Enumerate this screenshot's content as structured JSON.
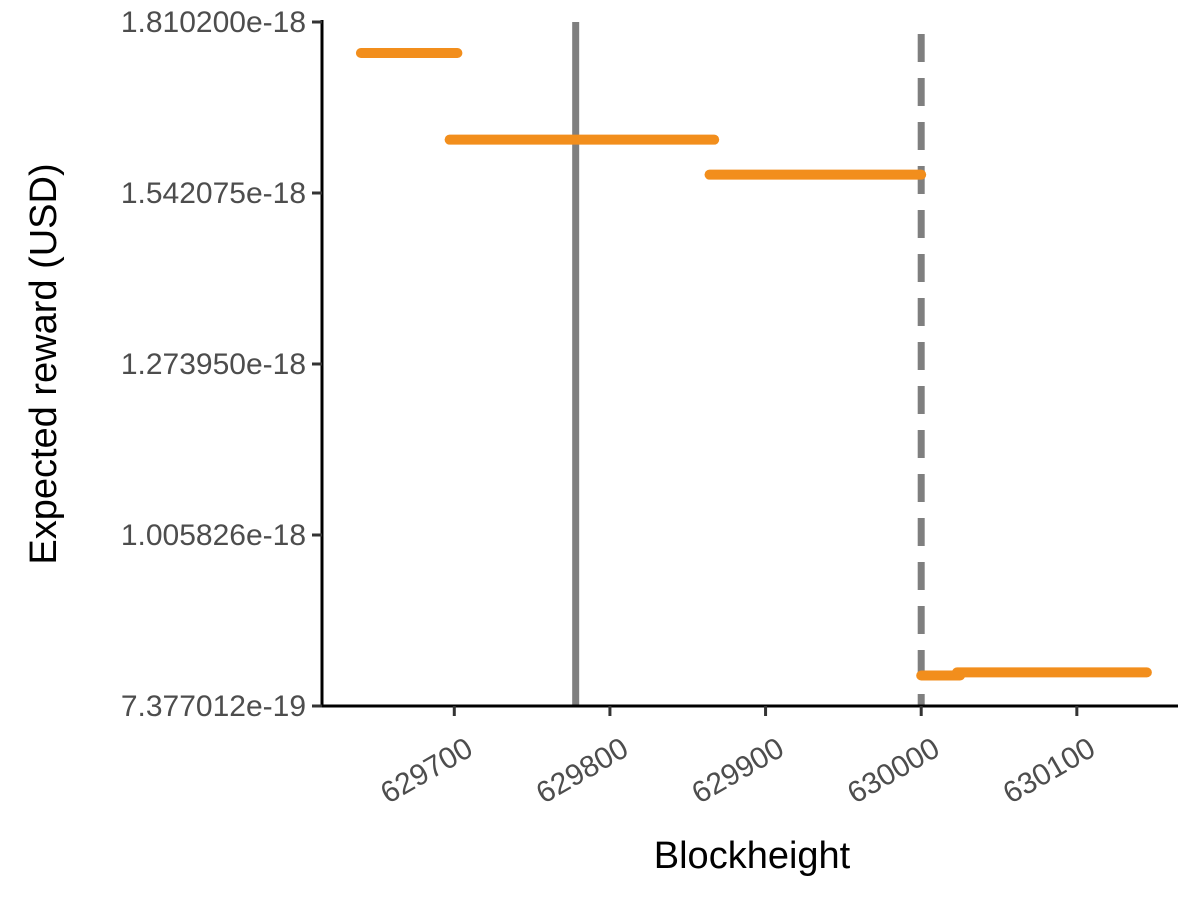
{
  "chart_data": {
    "type": "line",
    "title": "",
    "xlabel": "Blockheight",
    "ylabel": "Expected reward (USD)",
    "xlim": [
      629615,
      630165
    ],
    "ylim": [
      7.377012e-19,
      1.8102e-18
    ],
    "x_ticks": [
      629700,
      629800,
      629900,
      630000,
      630100
    ],
    "x_tick_labels": [
      "629700",
      "629800",
      "629900",
      "630000",
      "630100"
    ],
    "y_ticks": [
      7.377012e-19,
      1.005826e-18,
      1.27395e-18,
      1.542075e-18,
      1.8102e-18
    ],
    "y_tick_labels": [
      "7.377012e-19",
      "1.005826e-18",
      "1.273950e-18",
      "1.542075e-18",
      "1.810200e-18"
    ],
    "grid": false,
    "legend": "none",
    "series_color": "#f28e1c",
    "segments": [
      {
        "x_start": 629640,
        "x_end": 629702,
        "y": 1.7616e-18
      },
      {
        "x_start": 629697,
        "x_end": 629867,
        "y": 1.6257e-18
      },
      {
        "x_start": 629864,
        "x_end": 630000,
        "y": 1.5708e-18
      },
      {
        "x_start": 630000,
        "x_end": 630025,
        "y": 7.855e-19
      },
      {
        "x_start": 630023,
        "x_end": 630145,
        "y": 7.904e-19
      }
    ],
    "reference_lines": [
      {
        "x": 629778,
        "style": "solid",
        "color": "#7f7f7f"
      },
      {
        "x": 630000,
        "style": "dashed",
        "color": "#7f7f7f"
      }
    ]
  }
}
